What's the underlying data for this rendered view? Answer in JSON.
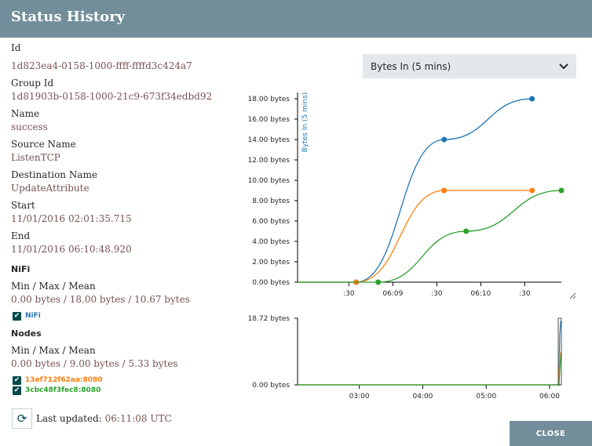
{
  "dialog": {
    "title": "Status History"
  },
  "details": {
    "id_label": "Id",
    "id_value": "1d823ea4-0158-1000-ffff-ffffd3c424a7",
    "group_id_label": "Group Id",
    "group_id_value": "1d81903b-0158-1000-21c9-673f34edbd92",
    "name_label": "Name",
    "name_value": "success",
    "source_label": "Source Name",
    "source_value": "ListenTCP",
    "dest_label": "Destination Name",
    "dest_value": "UpdateAttribute",
    "start_label": "Start",
    "start_value": "11/01/2016 02:01:35.715",
    "end_label": "End",
    "end_value": "11/01/2016 06:10:48.920"
  },
  "nifi": {
    "title": "NiFi",
    "mmm_label": "Min / Max / Mean",
    "mmm_value": "0.00 bytes / 18.00 bytes / 10.67 bytes",
    "legend": [
      {
        "label": "NiFi",
        "color": "#1f77b4",
        "checked": true
      }
    ]
  },
  "nodes": {
    "title": "Nodes",
    "mmm_label": "Min / Max / Mean",
    "mmm_value": "0.00 bytes / 9.00 bytes / 5.33 bytes",
    "legend": [
      {
        "label": "13ef712f62aa:8080",
        "color": "#ff7f0e",
        "checked": true
      },
      {
        "label": "3cbc48f3fec8:8080",
        "color": "#2ca02c",
        "checked": true
      }
    ]
  },
  "metric_select": {
    "selected": "Bytes In (5 mins)",
    "icon": "chevron-down-icon"
  },
  "footer": {
    "refresh_icon": "refresh-icon",
    "last_updated_label": "Last updated:",
    "last_updated_value": "06:11:08 UTC",
    "close_label": "CLOSE"
  },
  "chart_data": [
    {
      "type": "line",
      "ylabel": "Bytes In (5 mins)",
      "ylim": [
        0,
        18
      ],
      "yticks": [
        0,
        2,
        4,
        6,
        8,
        10,
        12,
        14,
        16,
        18
      ],
      "ytick_labels": [
        "0.00 bytes",
        "2.00 bytes",
        "4.00 bytes",
        "6.00 bytes",
        "8.00 bytes",
        "10.00 bytes",
        "12.00 bytes",
        "14.00 bytes",
        "16.00 bytes",
        "18.00 bytes"
      ],
      "xlim": [
        "06:07:55",
        "06:10:55"
      ],
      "xticks": [
        "06:08:30",
        "06:09:00",
        "06:09:30",
        "06:10:00",
        "06:10:30"
      ],
      "xtick_labels": [
        ":30",
        "06:09",
        ":30",
        "06:10",
        ":30"
      ],
      "series": [
        {
          "name": "NiFi",
          "color": "#1f77b4",
          "points": [
            {
              "x": "06:07:55",
              "y": 0
            },
            {
              "x": "06:08:35",
              "y": 0
            },
            {
              "x": "06:09:35",
              "y": 14
            },
            {
              "x": "06:10:35",
              "y": 18
            }
          ]
        },
        {
          "name": "13ef712f62aa:8080",
          "color": "#ff7f0e",
          "points": [
            {
              "x": "06:07:55",
              "y": 0
            },
            {
              "x": "06:08:35",
              "y": 0
            },
            {
              "x": "06:09:35",
              "y": 9
            },
            {
              "x": "06:10:35",
              "y": 9
            }
          ]
        },
        {
          "name": "3cbc48f3fec8:8080",
          "color": "#2ca02c",
          "points": [
            {
              "x": "06:07:55",
              "y": 0
            },
            {
              "x": "06:08:50",
              "y": 0
            },
            {
              "x": "06:09:50",
              "y": 5
            },
            {
              "x": "06:10:55",
              "y": 9
            }
          ]
        }
      ]
    },
    {
      "type": "line",
      "ylim": [
        0,
        18.72
      ],
      "yticks": [
        0,
        18.72
      ],
      "ytick_labels": [
        "0.00 bytes",
        "18.72 bytes"
      ],
      "xlim": [
        "02:01:35",
        "06:11:08"
      ],
      "xticks": [
        "03:00",
        "04:00",
        "05:00",
        "06:00"
      ],
      "xtick_labels": [
        "03:00",
        "04:00",
        "05:00",
        "06:00"
      ],
      "series": [
        {
          "name": "NiFi",
          "color": "#1f77b4",
          "points": [
            {
              "x": "02:01:35",
              "y": 0
            },
            {
              "x": "06:08:35",
              "y": 0
            },
            {
              "x": "06:09:35",
              "y": 14
            },
            {
              "x": "06:10:35",
              "y": 18
            }
          ]
        },
        {
          "name": "13ef712f62aa:8080",
          "color": "#ff7f0e",
          "points": [
            {
              "x": "02:01:35",
              "y": 0
            },
            {
              "x": "06:08:35",
              "y": 0
            },
            {
              "x": "06:09:35",
              "y": 9
            },
            {
              "x": "06:10:35",
              "y": 9
            }
          ]
        },
        {
          "name": "3cbc48f3fec8:8080",
          "color": "#2ca02c",
          "points": [
            {
              "x": "02:01:35",
              "y": 0
            },
            {
              "x": "06:08:50",
              "y": 0
            },
            {
              "x": "06:09:50",
              "y": 5
            },
            {
              "x": "06:10:55",
              "y": 9
            }
          ]
        }
      ]
    }
  ]
}
